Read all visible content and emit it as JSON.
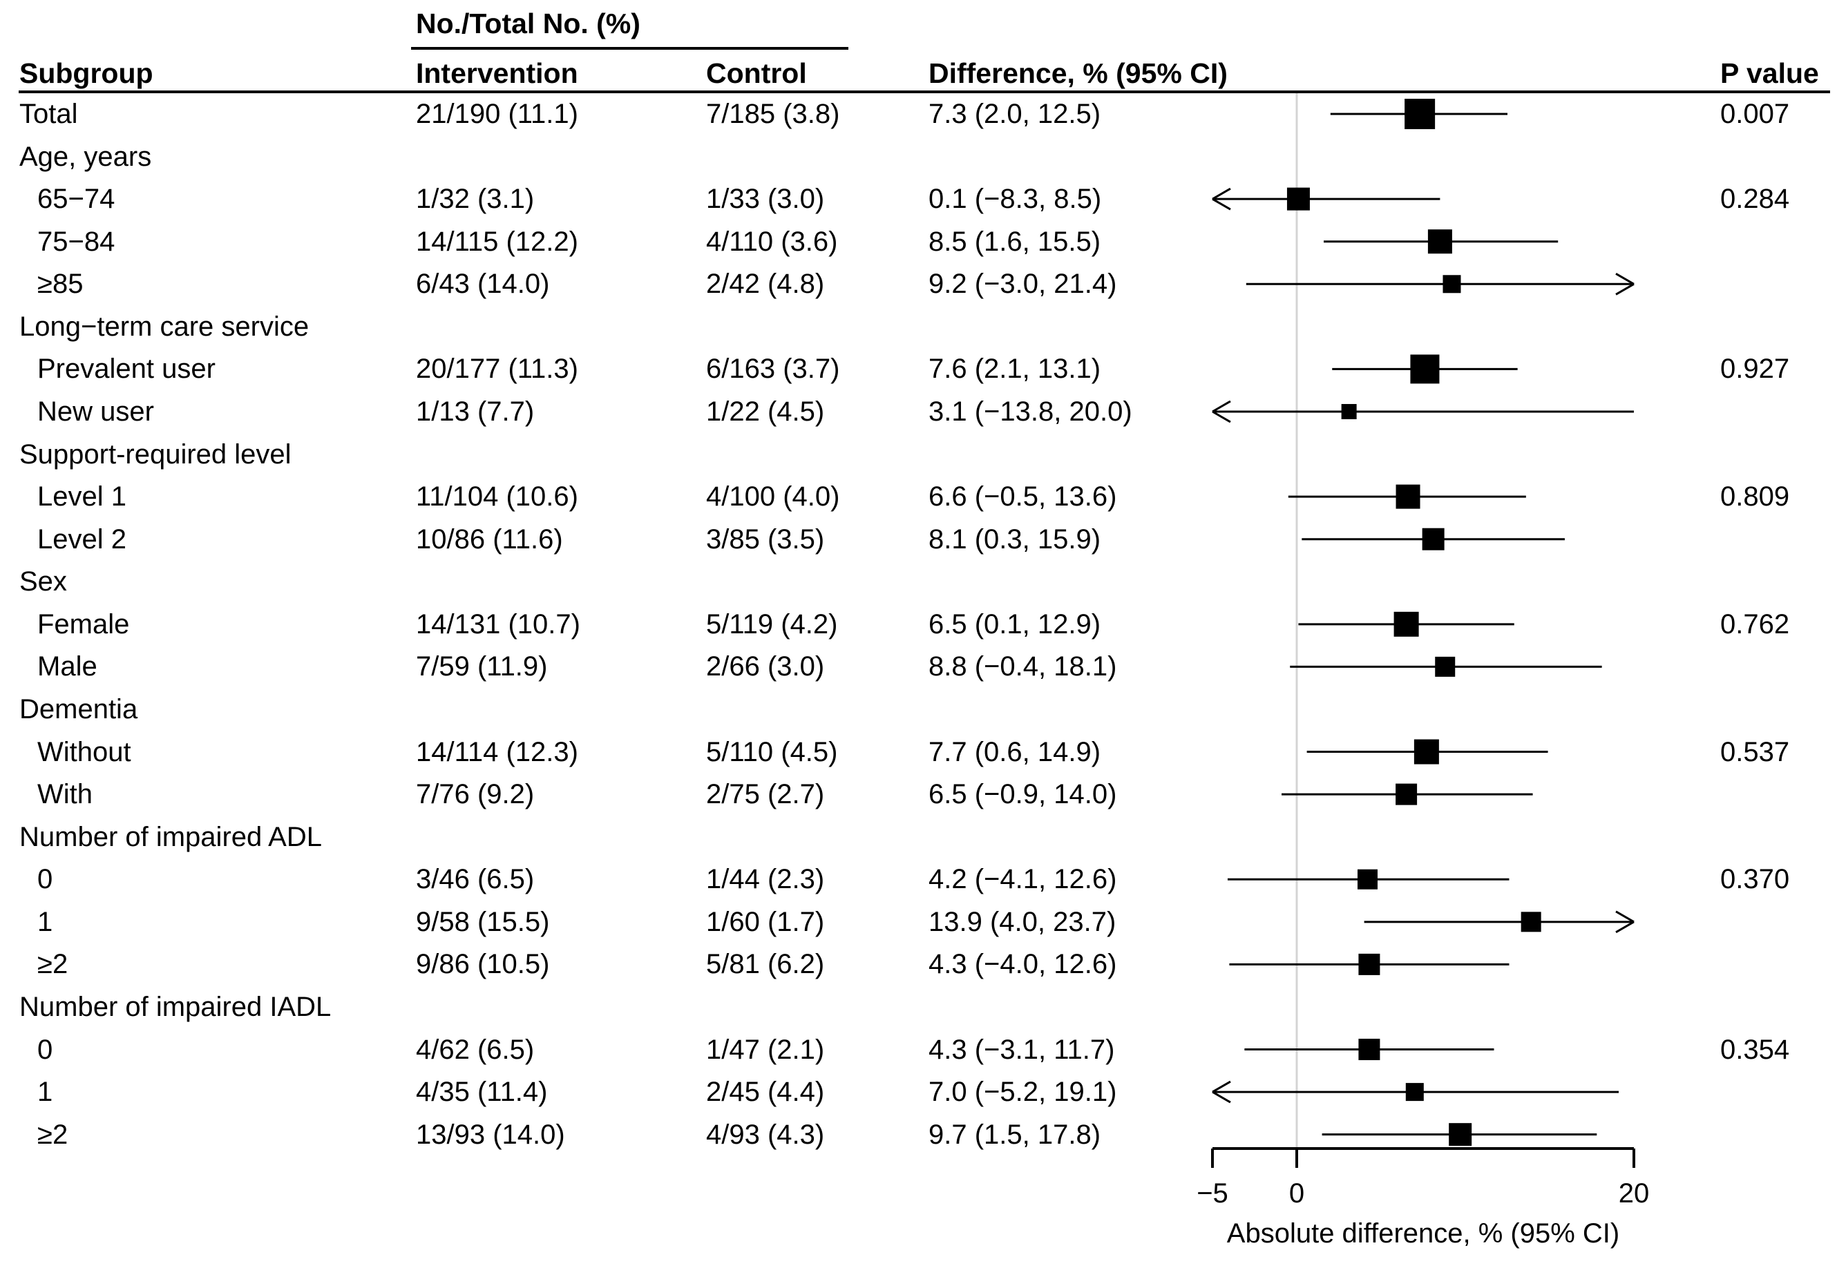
{
  "chart_data": {
    "type": "scatter",
    "subtype": "forest-plot",
    "columns": {
      "group_header": "No./Total No. (%)",
      "subgroup": "Subgroup",
      "intervention": "Intervention",
      "control": "Control",
      "difference": "Difference, % (95% CI)",
      "p_value": "P value"
    },
    "x_axis": {
      "label": "Absolute difference, % (95% CI)",
      "min": -5,
      "max": 20,
      "reference_line": 0,
      "ticks": [
        {
          "v": -5,
          "label": "−5"
        },
        {
          "v": 0,
          "label": "0"
        },
        {
          "v": 20,
          "label": "20"
        }
      ]
    },
    "rows": [
      {
        "kind": "data",
        "label": "Total",
        "indent": false,
        "intervention": "21/190 (11.1)",
        "control": "7/185 (3.8)",
        "difference_text": "7.3 (2.0, 12.5)",
        "estimate": 7.3,
        "ci_low": 2.0,
        "ci_high": 12.5,
        "p_value": "0.007",
        "box": 44
      },
      {
        "kind": "group",
        "label": "Age, years"
      },
      {
        "kind": "data",
        "label": "65−74",
        "indent": true,
        "intervention": "1/32 (3.1)",
        "control": "1/33 (3.0)",
        "difference_text": "0.1 (−8.3, 8.5)",
        "estimate": 0.1,
        "ci_low": -8.3,
        "ci_high": 8.5,
        "p_value": "0.284",
        "box": 33
      },
      {
        "kind": "data",
        "label": "75−84",
        "indent": true,
        "intervention": "14/115 (12.2)",
        "control": "4/110 (3.6)",
        "difference_text": "8.5 (1.6, 15.5)",
        "estimate": 8.5,
        "ci_low": 1.6,
        "ci_high": 15.5,
        "p_value": "",
        "box": 35
      },
      {
        "kind": "data",
        "label": "≥85",
        "indent": true,
        "intervention": "6/43 (14.0)",
        "control": "2/42 (4.8)",
        "difference_text": "9.2 (−3.0, 21.4)",
        "estimate": 9.2,
        "ci_low": -3.0,
        "ci_high": 21.4,
        "p_value": "",
        "box": 26
      },
      {
        "kind": "group",
        "label": "Long−term care service"
      },
      {
        "kind": "data",
        "label": "Prevalent user",
        "indent": true,
        "intervention": "20/177 (11.3)",
        "control": "6/163 (3.7)",
        "difference_text": "7.6 (2.1, 13.1)",
        "estimate": 7.6,
        "ci_low": 2.1,
        "ci_high": 13.1,
        "p_value": "0.927",
        "box": 42
      },
      {
        "kind": "data",
        "label": "New user",
        "indent": true,
        "intervention": "1/13 (7.7)",
        "control": "1/22 (4.5)",
        "difference_text": "3.1 (−13.8, 20.0)",
        "estimate": 3.1,
        "ci_low": -13.8,
        "ci_high": 20.0,
        "p_value": "",
        "box": 22
      },
      {
        "kind": "group",
        "label": "Support-required level"
      },
      {
        "kind": "data",
        "label": "Level 1",
        "indent": true,
        "intervention": "11/104 (10.6)",
        "control": "4/100 (4.0)",
        "difference_text": "6.6 (−0.5, 13.6)",
        "estimate": 6.6,
        "ci_low": -0.5,
        "ci_high": 13.6,
        "p_value": "0.809",
        "box": 35
      },
      {
        "kind": "data",
        "label": "Level 2",
        "indent": true,
        "intervention": "10/86 (11.6)",
        "control": "3/85 (3.5)",
        "difference_text": "8.1 (0.3, 15.9)",
        "estimate": 8.1,
        "ci_low": 0.3,
        "ci_high": 15.9,
        "p_value": "",
        "box": 32
      },
      {
        "kind": "group",
        "label": "Sex"
      },
      {
        "kind": "data",
        "label": "Female",
        "indent": true,
        "intervention": "14/131 (10.7)",
        "control": "5/119 (4.2)",
        "difference_text": "6.5 (0.1, 12.9)",
        "estimate": 6.5,
        "ci_low": 0.1,
        "ci_high": 12.9,
        "p_value": "0.762",
        "box": 36
      },
      {
        "kind": "data",
        "label": "Male",
        "indent": true,
        "intervention": "7/59 (11.9)",
        "control": "2/66 (3.0)",
        "difference_text": "8.8 (−0.4, 18.1)",
        "estimate": 8.8,
        "ci_low": -0.4,
        "ci_high": 18.1,
        "p_value": "",
        "box": 29
      },
      {
        "kind": "group",
        "label": "Dementia"
      },
      {
        "kind": "data",
        "label": "Without",
        "indent": true,
        "intervention": "14/114 (12.3)",
        "control": "5/110 (4.5)",
        "difference_text": "7.7 (0.6, 14.9)",
        "estimate": 7.7,
        "ci_low": 0.6,
        "ci_high": 14.9,
        "p_value": "0.537",
        "box": 36
      },
      {
        "kind": "data",
        "label": "With",
        "indent": true,
        "intervention": "7/76 (9.2)",
        "control": "2/75 (2.7)",
        "difference_text": "6.5 (−0.9, 14.0)",
        "estimate": 6.5,
        "ci_low": -0.9,
        "ci_high": 14.0,
        "p_value": "",
        "box": 31
      },
      {
        "kind": "group",
        "label": "Number of impaired ADL"
      },
      {
        "kind": "data",
        "label": "0",
        "indent": true,
        "intervention": "3/46 (6.5)",
        "control": "1/44 (2.3)",
        "difference_text": "4.2 (−4.1, 12.6)",
        "estimate": 4.2,
        "ci_low": -4.1,
        "ci_high": 12.6,
        "p_value": "0.370",
        "box": 29
      },
      {
        "kind": "data",
        "label": "1",
        "indent": true,
        "intervention": "9/58 (15.5)",
        "control": "1/60 (1.7)",
        "difference_text": "13.9 (4.0, 23.7)",
        "estimate": 13.9,
        "ci_low": 4.0,
        "ci_high": 23.7,
        "p_value": "",
        "box": 29
      },
      {
        "kind": "data",
        "label": "≥2",
        "indent": true,
        "intervention": "9/86 (10.5)",
        "control": "5/81 (6.2)",
        "difference_text": "4.3 (−4.0, 12.6)",
        "estimate": 4.3,
        "ci_low": -4.0,
        "ci_high": 12.6,
        "p_value": "",
        "box": 31
      },
      {
        "kind": "group",
        "label": "Number of impaired IADL"
      },
      {
        "kind": "data",
        "label": "0",
        "indent": true,
        "intervention": "4/62 (6.5)",
        "control": "1/47 (2.1)",
        "difference_text": "4.3 (−3.1, 11.7)",
        "estimate": 4.3,
        "ci_low": -3.1,
        "ci_high": 11.7,
        "p_value": "0.354",
        "box": 31
      },
      {
        "kind": "data",
        "label": "1",
        "indent": true,
        "intervention": "4/35 (11.4)",
        "control": "2/45 (4.4)",
        "difference_text": "7.0 (−5.2, 19.1)",
        "estimate": 7.0,
        "ci_low": -5.2,
        "ci_high": 19.1,
        "p_value": "",
        "box": 26
      },
      {
        "kind": "data",
        "label": "≥2",
        "indent": true,
        "intervention": "13/93 (14.0)",
        "control": "4/93 (4.3)",
        "difference_text": "9.7 (1.5, 17.8)",
        "estimate": 9.7,
        "ci_low": 1.5,
        "ci_high": 17.8,
        "p_value": "",
        "box": 33
      }
    ]
  },
  "colors": {
    "text": "#000000",
    "background": "#ffffff",
    "marker": "#000000",
    "ci_line": "#000000",
    "reference_line": "#d4d4d4",
    "axis": "#000000"
  }
}
